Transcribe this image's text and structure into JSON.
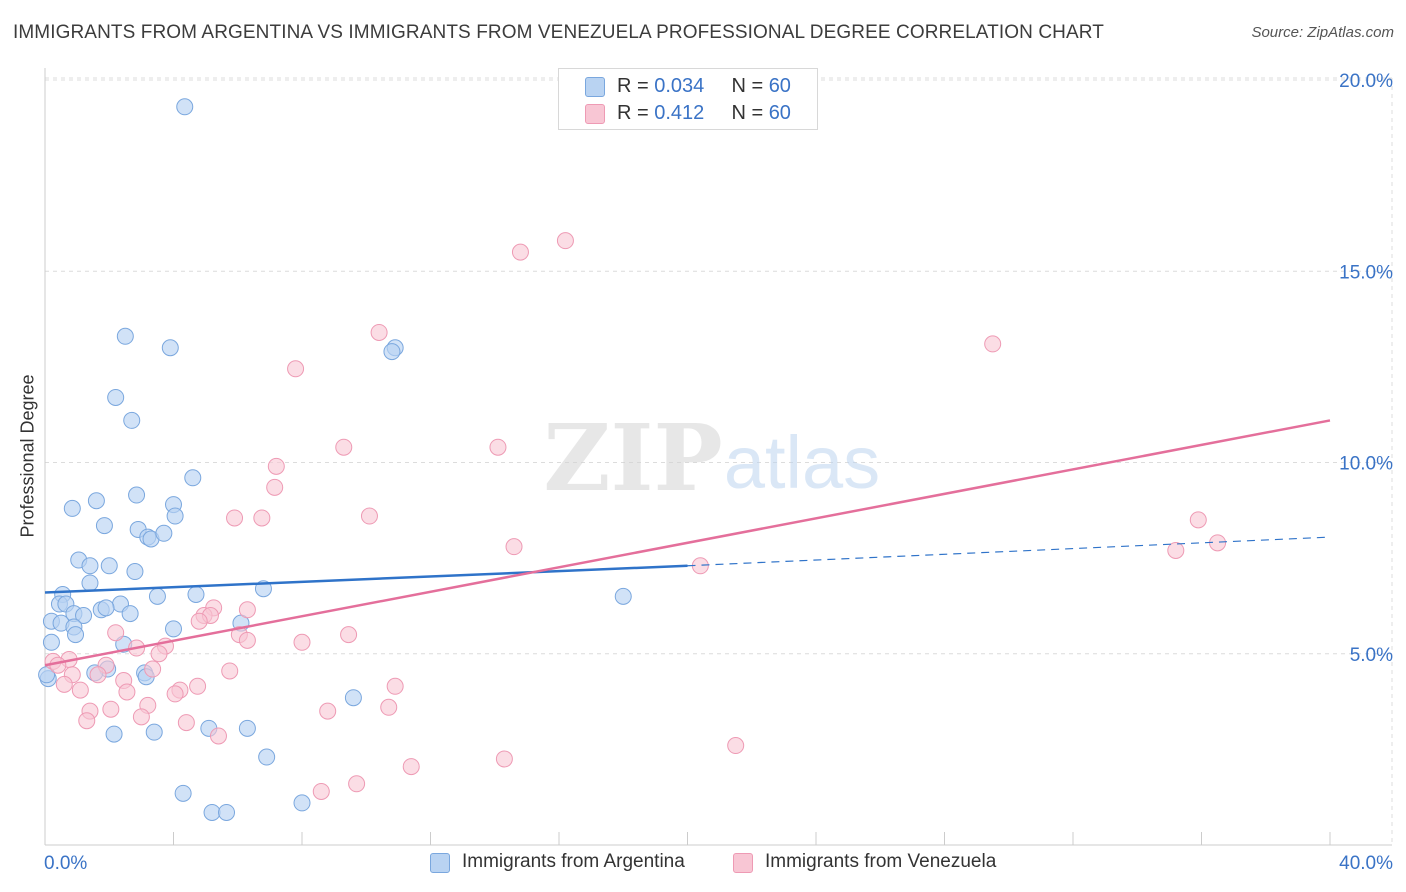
{
  "title": "IMMIGRANTS FROM ARGENTINA VS IMMIGRANTS FROM VENEZUELA PROFESSIONAL DEGREE CORRELATION CHART",
  "source": "Source: ZipAtlas.com",
  "watermark": {
    "zip": "ZIP",
    "atlas": "atlas"
  },
  "colors": {
    "argentina_fill": "#b9d3f2",
    "argentina_stroke": "#7aa7de",
    "argentina_line": "#2f73c9",
    "venezuela_fill": "#f8c6d4",
    "venezuela_stroke": "#ee9ab4",
    "venezuela_line": "#e46f9b",
    "tick_label": "#3a73c6",
    "grid": "#dcdcdc"
  },
  "legend_top": {
    "rows": [
      {
        "r_label": "R = ",
        "r_value": "0.034",
        "n_label": "N = ",
        "n_value": "60"
      },
      {
        "r_label": "R = ",
        "r_value": "0.412",
        "n_label": "N = ",
        "n_value": "60"
      }
    ]
  },
  "chart_data": {
    "type": "scatter",
    "title": "IMMIGRANTS FROM ARGENTINA VS IMMIGRANTS FROM VENEZUELA PROFESSIONAL DEGREE CORRELATION CHART",
    "xlabel": "",
    "ylabel": "Professional Degree",
    "xlim": [
      0,
      40
    ],
    "ylim": [
      0,
      20.5
    ],
    "x_tick_labels": [
      "0.0%",
      "40.0%"
    ],
    "y_ticks": [
      5,
      10,
      15,
      20
    ],
    "y_tick_labels": [
      "5.0%",
      "10.0%",
      "15.0%",
      "20.0%"
    ],
    "grid": true,
    "legend": "bottom-center",
    "series": [
      {
        "name": "Immigrants from Argentina",
        "r": 0.034,
        "n": 60,
        "trend": {
          "x0": 0.0,
          "y0": 6.6,
          "x1": 20.0,
          "y1": 7.3,
          "dashed_to_x": 40.0,
          "dashed_to_y": 8.05
        },
        "points": [
          [
            4.35,
            19.3
          ],
          [
            2.5,
            13.3
          ],
          [
            3.9,
            13.0
          ],
          [
            10.9,
            13.0
          ],
          [
            10.8,
            12.9
          ],
          [
            2.2,
            11.7
          ],
          [
            2.7,
            11.1
          ],
          [
            4.6,
            9.6
          ],
          [
            1.6,
            9.0
          ],
          [
            2.85,
            9.15
          ],
          [
            0.85,
            8.8
          ],
          [
            4.0,
            8.9
          ],
          [
            4.05,
            8.6
          ],
          [
            1.85,
            8.35
          ],
          [
            2.9,
            8.25
          ],
          [
            3.2,
            8.05
          ],
          [
            3.3,
            8.0
          ],
          [
            3.7,
            8.15
          ],
          [
            1.05,
            7.45
          ],
          [
            1.4,
            7.3
          ],
          [
            2.0,
            7.3
          ],
          [
            2.8,
            7.15
          ],
          [
            1.4,
            6.85
          ],
          [
            6.8,
            6.7
          ],
          [
            0.55,
            6.55
          ],
          [
            4.7,
            6.55
          ],
          [
            3.5,
            6.5
          ],
          [
            18.0,
            6.5
          ],
          [
            0.45,
            6.3
          ],
          [
            0.65,
            6.3
          ],
          [
            2.35,
            6.3
          ],
          [
            1.75,
            6.15
          ],
          [
            1.9,
            6.2
          ],
          [
            0.9,
            6.05
          ],
          [
            1.2,
            6.0
          ],
          [
            2.65,
            6.05
          ],
          [
            0.2,
            5.85
          ],
          [
            0.5,
            5.8
          ],
          [
            0.9,
            5.7
          ],
          [
            6.1,
            5.8
          ],
          [
            4.0,
            5.65
          ],
          [
            0.95,
            5.5
          ],
          [
            0.2,
            5.3
          ],
          [
            2.45,
            5.25
          ],
          [
            1.95,
            4.6
          ],
          [
            1.55,
            4.5
          ],
          [
            3.1,
            4.5
          ],
          [
            3.15,
            4.4
          ],
          [
            0.1,
            4.35
          ],
          [
            9.6,
            3.85
          ],
          [
            6.3,
            3.05
          ],
          [
            5.1,
            3.05
          ],
          [
            3.4,
            2.95
          ],
          [
            2.15,
            2.9
          ],
          [
            6.9,
            2.3
          ],
          [
            4.3,
            1.35
          ],
          [
            8.0,
            1.1
          ],
          [
            5.2,
            0.85
          ],
          [
            5.65,
            0.85
          ],
          [
            0.05,
            4.45
          ]
        ]
      },
      {
        "name": "Immigrants from Venezuela",
        "r": 0.412,
        "n": 60,
        "trend": {
          "x0": 0.0,
          "y0": 4.7,
          "x1": 40.0,
          "y1": 11.1
        },
        "points": [
          [
            16.2,
            15.8
          ],
          [
            14.8,
            15.5
          ],
          [
            10.4,
            13.4
          ],
          [
            29.5,
            13.1
          ],
          [
            7.8,
            12.45
          ],
          [
            9.3,
            10.4
          ],
          [
            14.1,
            10.4
          ],
          [
            7.2,
            9.9
          ],
          [
            7.15,
            9.35
          ],
          [
            5.9,
            8.55
          ],
          [
            6.75,
            8.55
          ],
          [
            10.1,
            8.6
          ],
          [
            35.9,
            8.5
          ],
          [
            36.5,
            7.9
          ],
          [
            14.6,
            7.8
          ],
          [
            35.2,
            7.7
          ],
          [
            20.4,
            7.3
          ],
          [
            5.25,
            6.2
          ],
          [
            6.3,
            6.15
          ],
          [
            4.95,
            6.0
          ],
          [
            5.15,
            6.0
          ],
          [
            4.8,
            5.85
          ],
          [
            2.2,
            5.55
          ],
          [
            6.05,
            5.5
          ],
          [
            9.45,
            5.5
          ],
          [
            6.3,
            5.35
          ],
          [
            8.0,
            5.3
          ],
          [
            3.75,
            5.2
          ],
          [
            2.85,
            5.15
          ],
          [
            3.55,
            5.0
          ],
          [
            0.75,
            4.85
          ],
          [
            0.25,
            4.8
          ],
          [
            0.4,
            4.7
          ],
          [
            1.9,
            4.7
          ],
          [
            3.35,
            4.6
          ],
          [
            5.75,
            4.55
          ],
          [
            1.65,
            4.45
          ],
          [
            0.85,
            4.45
          ],
          [
            2.45,
            4.3
          ],
          [
            0.6,
            4.2
          ],
          [
            4.75,
            4.15
          ],
          [
            10.9,
            4.15
          ],
          [
            1.1,
            4.05
          ],
          [
            4.2,
            4.05
          ],
          [
            2.55,
            4.0
          ],
          [
            4.05,
            3.95
          ],
          [
            1.4,
            3.5
          ],
          [
            2.05,
            3.55
          ],
          [
            3.2,
            3.65
          ],
          [
            8.8,
            3.5
          ],
          [
            10.7,
            3.6
          ],
          [
            1.3,
            3.25
          ],
          [
            3.0,
            3.35
          ],
          [
            4.4,
            3.2
          ],
          [
            5.4,
            2.85
          ],
          [
            21.5,
            2.6
          ],
          [
            14.3,
            2.25
          ],
          [
            11.4,
            2.05
          ],
          [
            9.7,
            1.6
          ],
          [
            8.6,
            1.4
          ]
        ]
      }
    ]
  }
}
